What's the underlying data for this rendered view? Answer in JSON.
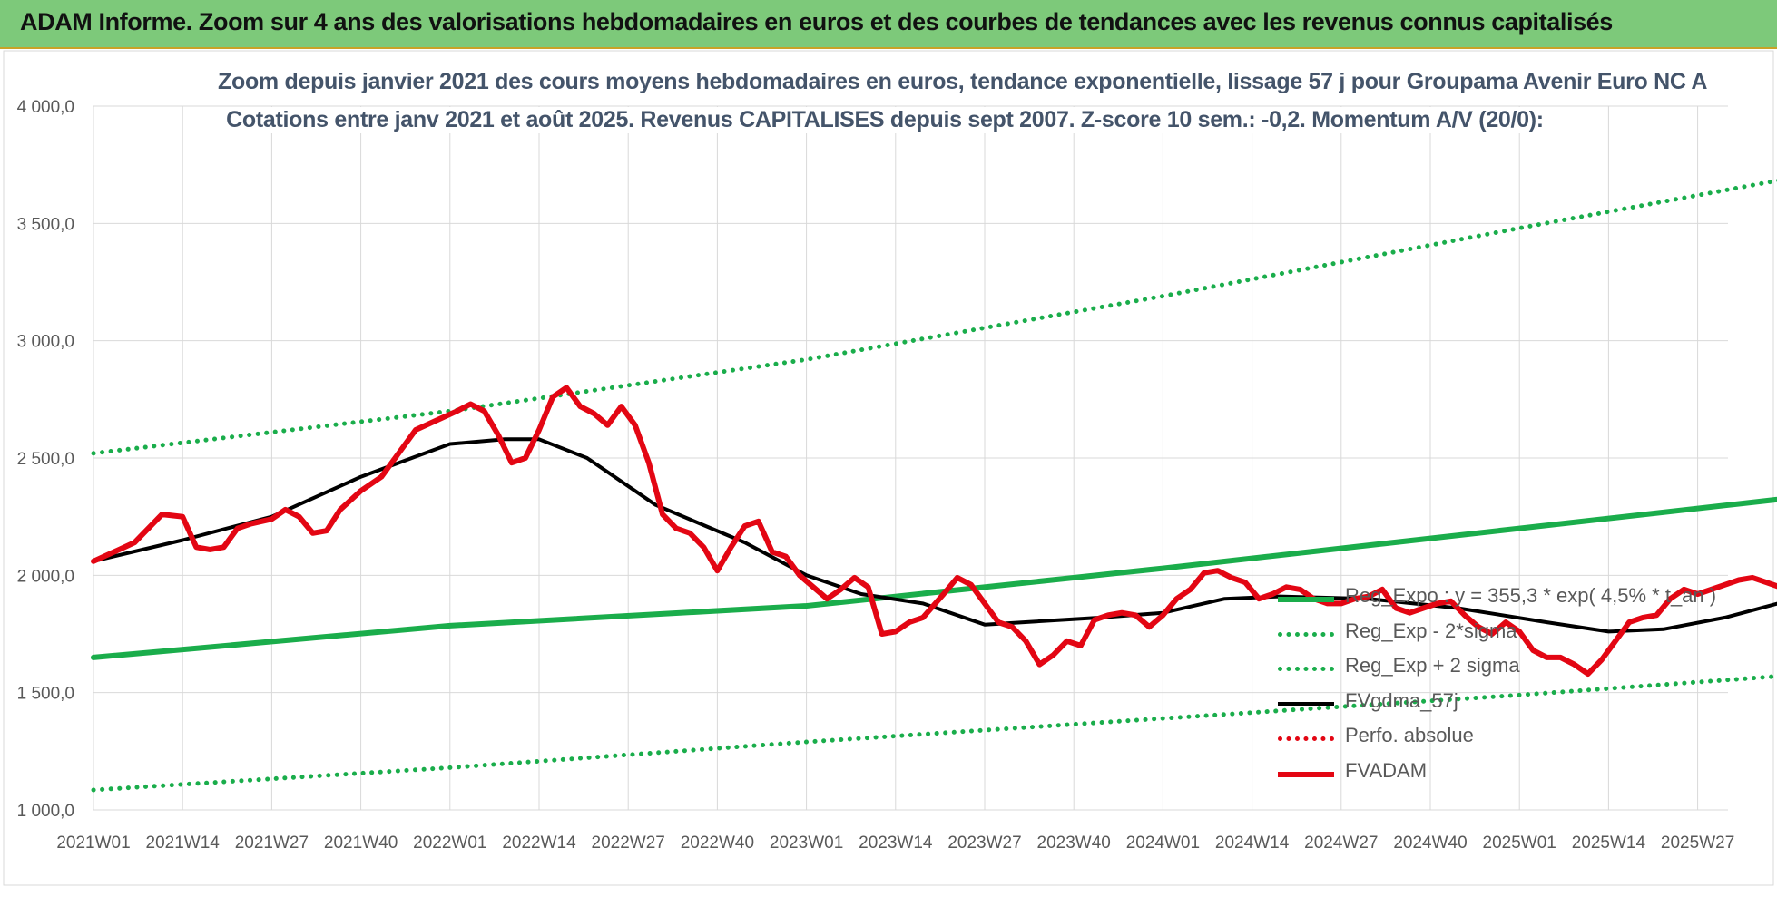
{
  "header": {
    "title": "ADAM Informe. Zoom sur 4 ans des valorisations hebdomadaires en euros et des courbes de tendances avec les revenus connus capitalisés"
  },
  "chart_data": {
    "type": "line",
    "title": "Zoom depuis janvier 2021 des cours moyens hebdomadaires en euros, tendance exponentielle, lissage 57 j pour Groupama Avenir Euro NC A",
    "subtitle": "Cotations entre janv 2021 et août 2025.  Revenus CAPITALISES depuis sept 2007. Z-score 10 sem.: -0,2. Momentum A/V (20/0):",
    "xlabel": "",
    "ylabel": "",
    "ylim": [
      1000,
      4000
    ],
    "y_ticks": [
      "1 000,0",
      "1 500,0",
      "2 000,0",
      "2 500,0",
      "3 000,0",
      "3 500,0",
      "4 000,0"
    ],
    "x_ticks": [
      "2021W01",
      "2021W14",
      "2021W27",
      "2021W40",
      "2022W01",
      "2022W14",
      "2022W27",
      "2022W40",
      "2023W01",
      "2023W14",
      "2023W27",
      "2023W40",
      "2024W01",
      "2024W14",
      "2024W27",
      "2024W40",
      "2025W01",
      "2025W14",
      "2025W27"
    ],
    "grid": true,
    "legend_position": "bottom-right",
    "series": [
      {
        "name": "Reg_Expo : y = 355,3 * exp( 4,5% * t_an )",
        "style": "solid",
        "color": "#1aad4b",
        "points": [
          [
            0,
            1650
          ],
          [
            52,
            1785
          ],
          [
            104,
            1870
          ],
          [
            156,
            2030
          ],
          [
            208,
            2200
          ],
          [
            260,
            2370
          ],
          [
            312,
            2570
          ],
          [
            365,
            2790
          ]
        ]
      },
      {
        "name": "Reg_Exp - 2*sigma",
        "style": "dotted",
        "color": "#1aad4b",
        "points": [
          [
            0,
            1085
          ],
          [
            52,
            1180
          ],
          [
            104,
            1290
          ],
          [
            156,
            1390
          ],
          [
            208,
            1490
          ],
          [
            260,
            1600
          ],
          [
            312,
            1720
          ],
          [
            365,
            1830
          ]
        ]
      },
      {
        "name": "Reg_Exp + 2 sigma",
        "style": "dotted",
        "color": "#1aad4b",
        "points": [
          [
            0,
            2520
          ],
          [
            52,
            2700
          ],
          [
            104,
            2920
          ],
          [
            156,
            3190
          ],
          [
            208,
            3480
          ],
          [
            260,
            3760
          ],
          [
            300,
            4000
          ],
          [
            365,
            4000
          ]
        ]
      },
      {
        "name": "FVgdma_57j",
        "style": "solid",
        "color": "#000000",
        "points": [
          [
            0,
            2060
          ],
          [
            13,
            2150
          ],
          [
            26,
            2250
          ],
          [
            39,
            2420
          ],
          [
            52,
            2560
          ],
          [
            60,
            2580
          ],
          [
            65,
            2580
          ],
          [
            72,
            2500
          ],
          [
            82,
            2300
          ],
          [
            95,
            2140
          ],
          [
            104,
            2000
          ],
          [
            112,
            1920
          ],
          [
            121,
            1880
          ],
          [
            130,
            1790
          ],
          [
            147,
            1820
          ],
          [
            156,
            1840
          ],
          [
            165,
            1900
          ],
          [
            173,
            1910
          ],
          [
            186,
            1900
          ],
          [
            199,
            1860
          ],
          [
            212,
            1800
          ],
          [
            221,
            1760
          ],
          [
            229,
            1770
          ],
          [
            238,
            1820
          ],
          [
            247,
            1890
          ],
          [
            260,
            1920
          ],
          [
            281,
            1920
          ],
          [
            295,
            1880
          ],
          [
            300,
            1840
          ],
          [
            312,
            1830
          ],
          [
            324,
            1870
          ],
          [
            337,
            1880
          ],
          [
            350,
            1870
          ],
          [
            357,
            1900
          ],
          [
            365,
            1960
          ]
        ]
      },
      {
        "name": "Perfo. absolue",
        "style": "dotted",
        "color": "#e30613",
        "points": []
      },
      {
        "name": "FVADAM",
        "style": "solid",
        "color": "#e30613",
        "points": [
          [
            0,
            2060
          ],
          [
            3,
            2100
          ],
          [
            6,
            2140
          ],
          [
            8,
            2200
          ],
          [
            10,
            2260
          ],
          [
            13,
            2250
          ],
          [
            15,
            2120
          ],
          [
            17,
            2110
          ],
          [
            19,
            2120
          ],
          [
            21,
            2200
          ],
          [
            23,
            2220
          ],
          [
            26,
            2240
          ],
          [
            28,
            2280
          ],
          [
            30,
            2250
          ],
          [
            32,
            2180
          ],
          [
            34,
            2190
          ],
          [
            36,
            2280
          ],
          [
            39,
            2360
          ],
          [
            42,
            2420
          ],
          [
            44,
            2500
          ],
          [
            47,
            2620
          ],
          [
            50,
            2660
          ],
          [
            53,
            2700
          ],
          [
            55,
            2730
          ],
          [
            57,
            2700
          ],
          [
            59,
            2600
          ],
          [
            61,
            2480
          ],
          [
            63,
            2500
          ],
          [
            65,
            2620
          ],
          [
            67,
            2760
          ],
          [
            69,
            2800
          ],
          [
            71,
            2720
          ],
          [
            73,
            2690
          ],
          [
            75,
            2640
          ],
          [
            77,
            2720
          ],
          [
            79,
            2640
          ],
          [
            81,
            2480
          ],
          [
            83,
            2260
          ],
          [
            85,
            2200
          ],
          [
            87,
            2180
          ],
          [
            89,
            2120
          ],
          [
            91,
            2020
          ],
          [
            93,
            2120
          ],
          [
            95,
            2210
          ],
          [
            97,
            2230
          ],
          [
            99,
            2100
          ],
          [
            101,
            2080
          ],
          [
            103,
            2000
          ],
          [
            105,
            1950
          ],
          [
            107,
            1900
          ],
          [
            109,
            1940
          ],
          [
            111,
            1990
          ],
          [
            113,
            1950
          ],
          [
            115,
            1750
          ],
          [
            117,
            1760
          ],
          [
            119,
            1800
          ],
          [
            121,
            1820
          ],
          [
            124,
            1920
          ],
          [
            126,
            1990
          ],
          [
            128,
            1960
          ],
          [
            130,
            1880
          ],
          [
            132,
            1800
          ],
          [
            134,
            1780
          ],
          [
            136,
            1720
          ],
          [
            138,
            1620
          ],
          [
            140,
            1660
          ],
          [
            142,
            1720
          ],
          [
            144,
            1700
          ],
          [
            146,
            1810
          ],
          [
            148,
            1830
          ],
          [
            150,
            1840
          ],
          [
            152,
            1830
          ],
          [
            154,
            1780
          ],
          [
            156,
            1830
          ],
          [
            158,
            1900
          ],
          [
            160,
            1940
          ],
          [
            162,
            2010
          ],
          [
            164,
            2020
          ],
          [
            166,
            1990
          ],
          [
            168,
            1970
          ],
          [
            170,
            1900
          ],
          [
            172,
            1920
          ],
          [
            174,
            1950
          ],
          [
            176,
            1940
          ],
          [
            178,
            1900
          ],
          [
            180,
            1880
          ],
          [
            182,
            1880
          ],
          [
            184,
            1900
          ],
          [
            186,
            1910
          ],
          [
            188,
            1940
          ],
          [
            190,
            1860
          ],
          [
            192,
            1840
          ],
          [
            194,
            1860
          ],
          [
            196,
            1880
          ],
          [
            198,
            1890
          ],
          [
            200,
            1830
          ],
          [
            202,
            1780
          ],
          [
            204,
            1750
          ],
          [
            206,
            1800
          ],
          [
            208,
            1760
          ],
          [
            210,
            1680
          ],
          [
            212,
            1650
          ],
          [
            214,
            1650
          ],
          [
            216,
            1620
          ],
          [
            218,
            1580
          ],
          [
            220,
            1640
          ],
          [
            222,
            1720
          ],
          [
            224,
            1800
          ],
          [
            226,
            1820
          ],
          [
            228,
            1830
          ],
          [
            230,
            1900
          ],
          [
            232,
            1940
          ],
          [
            234,
            1920
          ],
          [
            236,
            1940
          ],
          [
            238,
            1960
          ],
          [
            240,
            1980
          ],
          [
            242,
            1990
          ],
          [
            244,
            1970
          ],
          [
            246,
            1950
          ],
          [
            248,
            1940
          ],
          [
            250,
            1920
          ],
          [
            252,
            1900
          ],
          [
            254,
            1880
          ],
          [
            256,
            1920
          ],
          [
            258,
            1950
          ],
          [
            260,
            2010
          ],
          [
            262,
            2000
          ],
          [
            264,
            1980
          ],
          [
            266,
            1930
          ],
          [
            268,
            1910
          ],
          [
            270,
            1850
          ],
          [
            272,
            1820
          ],
          [
            274,
            1880
          ],
          [
            276,
            1900
          ],
          [
            278,
            1860
          ],
          [
            280,
            1840
          ],
          [
            282,
            1870
          ],
          [
            284,
            1880
          ],
          [
            286,
            1840
          ],
          [
            288,
            1800
          ],
          [
            290,
            1780
          ],
          [
            292,
            1800
          ],
          [
            294,
            1790
          ],
          [
            296,
            1820
          ],
          [
            298,
            1810
          ],
          [
            300,
            1830
          ],
          [
            302,
            1870
          ],
          [
            304,
            1890
          ],
          [
            306,
            1920
          ],
          [
            308,
            1950
          ],
          [
            310,
            1940
          ],
          [
            312,
            1920
          ],
          [
            314,
            1880
          ],
          [
            316,
            1850
          ],
          [
            318,
            1760
          ],
          [
            320,
            1640
          ],
          [
            322,
            1720
          ],
          [
            324,
            1760
          ],
          [
            326,
            1820
          ],
          [
            328,
            1880
          ],
          [
            330,
            1900
          ],
          [
            332,
            1920
          ],
          [
            334,
            1950
          ],
          [
            336,
            1940
          ],
          [
            338,
            1960
          ],
          [
            340,
            1970
          ],
          [
            342,
            2000
          ],
          [
            344,
            2010
          ],
          [
            346,
            1990
          ],
          [
            348,
            1980
          ]
        ]
      }
    ]
  }
}
